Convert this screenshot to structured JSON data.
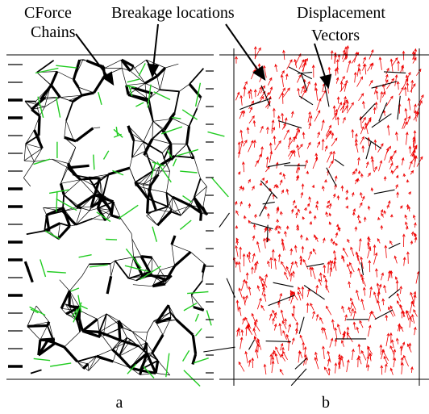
{
  "annotations": [
    {
      "lines": [
        "CForce",
        "Chains"
      ]
    },
    {
      "lines": [
        "Breakage locations"
      ]
    },
    {
      "lines": [
        "Displacement",
        "Vectors"
      ]
    }
  ],
  "panels": [
    {
      "label": "a"
    },
    {
      "label": "b"
    }
  ]
}
